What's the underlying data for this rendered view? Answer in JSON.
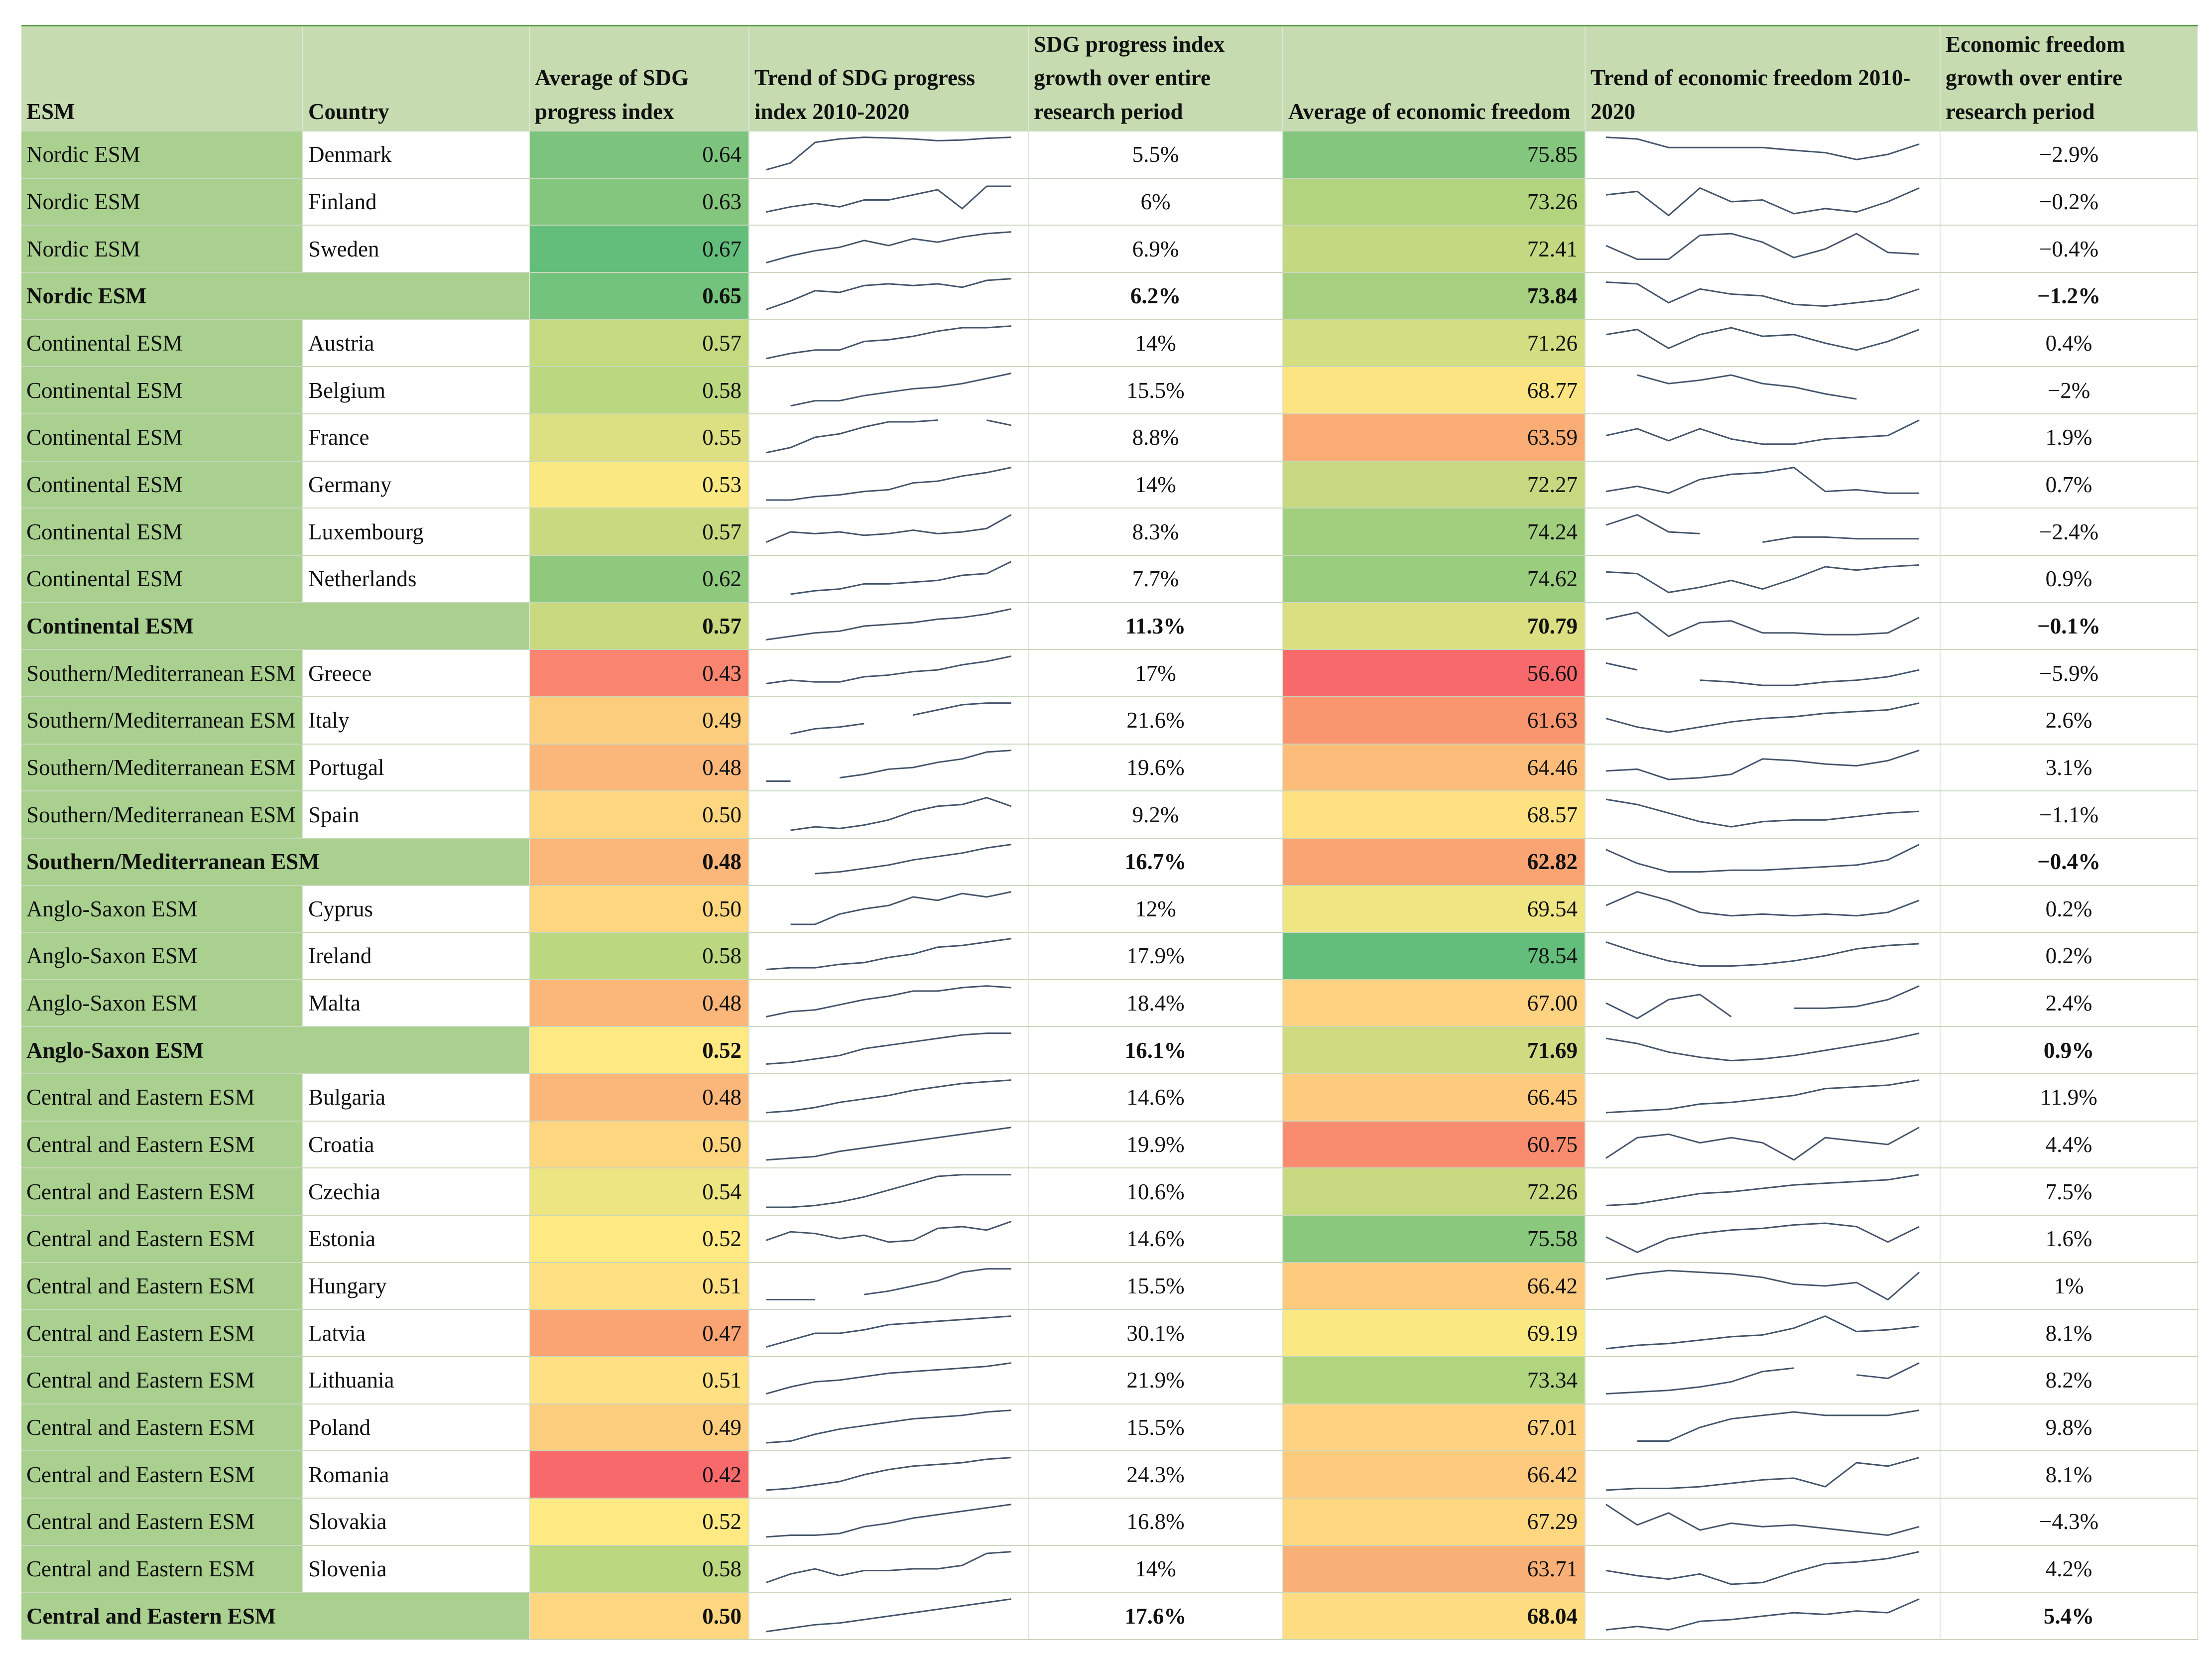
{
  "headers": {
    "esm": "ESM",
    "country": "Country",
    "avg_sdg": "Average of SDG progress index",
    "trend_sdg": "Trend of SDG progress index 2010-2020",
    "growth_sdg": "SDG progress index growth over entire research period",
    "avg_ef": "Average of economic freedom",
    "trend_ef": "Trend of economic freedom 2010-2020",
    "growth_ef": "Economic freedom growth over entire research period"
  },
  "colors": {
    "header_bg": "#c6dcb0",
    "esm_bg": "#a9d08e",
    "scale_low": "#f8696b",
    "scale_mid": "#ffeb84",
    "scale_high": "#63be7b",
    "sparkline": "#44546a"
  },
  "rows": [
    {
      "esm": "Nordic ESM",
      "country": "Denmark",
      "avg_sdg": "0.64",
      "growth_sdg": "5.5%",
      "avg_ef": "75.85",
      "growth_ef": "−2.9%",
      "sdg_color": "#7cc47e",
      "ef_color": "#84c67d",
      "trend_sdg": [
        0.05,
        0.25,
        0.85,
        0.95,
        1,
        0.98,
        0.95,
        0.9,
        0.92,
        0.97,
        1
      ],
      "trend_ef": [
        1,
        0.95,
        0.7,
        0.7,
        0.7,
        0.7,
        0.62,
        0.55,
        0.35,
        0.5,
        0.8
      ]
    },
    {
      "esm": "Nordic ESM",
      "country": "Finland",
      "avg_sdg": "0.63",
      "growth_sdg": "6%",
      "avg_ef": "73.26",
      "growth_ef": "−0.2%",
      "sdg_color": "#84c67d",
      "ef_color": "#b3d47f",
      "trend_sdg": [
        0.2,
        0.35,
        0.45,
        0.35,
        0.55,
        0.55,
        0.7,
        0.85,
        0.3,
        0.95,
        0.95
      ],
      "trend_ef": [
        0.7,
        0.8,
        0.1,
        0.9,
        0.5,
        0.55,
        0.15,
        0.3,
        0.2,
        0.5,
        0.9
      ]
    },
    {
      "esm": "Nordic ESM",
      "country": "Sweden",
      "avg_sdg": "0.67",
      "growth_sdg": "6.9%",
      "avg_ef": "72.41",
      "growth_ef": "−0.4%",
      "sdg_color": "#63be7b",
      "ef_color": "#c3d880",
      "trend_sdg": [
        0.1,
        0.3,
        0.45,
        0.55,
        0.75,
        0.6,
        0.8,
        0.7,
        0.85,
        0.95,
        1
      ],
      "trend_ef": [
        0.6,
        0.2,
        0.2,
        0.9,
        0.95,
        0.7,
        0.25,
        0.5,
        0.95,
        0.4,
        0.35
      ]
    },
    {
      "esm": "Nordic ESM",
      "country": "",
      "subtotal": true,
      "avg_sdg": "0.65",
      "growth_sdg": "6.2%",
      "avg_ef": "73.84",
      "growth_ef": "−1.2%",
      "sdg_color": "#74c37c",
      "ef_color": "#a6d07f",
      "trend_sdg": [
        0.1,
        0.35,
        0.65,
        0.6,
        0.8,
        0.85,
        0.8,
        0.85,
        0.75,
        0.95,
        1
      ],
      "trend_ef": [
        0.9,
        0.85,
        0.3,
        0.7,
        0.55,
        0.5,
        0.25,
        0.2,
        0.3,
        0.4,
        0.7
      ]
    },
    {
      "esm": "Continental ESM",
      "country": "Austria",
      "avg_sdg": "0.57",
      "growth_sdg": "14%",
      "avg_ef": "71.26",
      "growth_ef": "0.4%",
      "sdg_color": "#c5d980",
      "ef_color": "#d3dd81",
      "trend_sdg": [
        0.05,
        0.2,
        0.3,
        0.3,
        0.55,
        0.6,
        0.7,
        0.85,
        0.95,
        0.95,
        1
      ],
      "trend_ef": [
        0.75,
        0.9,
        0.35,
        0.75,
        0.95,
        0.7,
        0.75,
        0.5,
        0.3,
        0.55,
        0.9
      ]
    },
    {
      "esm": "Continental ESM",
      "country": "Belgium",
      "avg_sdg": "0.58",
      "growth_sdg": "15.5%",
      "avg_ef": "68.77",
      "growth_ef": "−2%",
      "sdg_color": "#bbd780",
      "ef_color": "#fde483",
      "trend_sdg": [
        null,
        0.05,
        0.2,
        0.2,
        0.35,
        0.45,
        0.55,
        0.6,
        0.7,
        0.85,
        1
      ],
      "trend_ef": [
        null,
        0.95,
        0.7,
        0.8,
        0.95,
        0.7,
        0.6,
        0.4,
        0.25,
        null,
        0.5
      ]
    },
    {
      "esm": "Continental ESM",
      "country": "France",
      "avg_sdg": "0.55",
      "growth_sdg": "8.8%",
      "avg_ef": "63.59",
      "growth_ef": "1.9%",
      "sdg_color": "#dde082",
      "ef_color": "#f9ad75",
      "trend_sdg": [
        0.05,
        0.2,
        0.5,
        0.6,
        0.8,
        0.95,
        0.95,
        1,
        null,
        1,
        0.85
      ],
      "trend_ef": [
        0.55,
        0.75,
        0.4,
        0.75,
        0.45,
        0.3,
        0.3,
        0.45,
        0.5,
        0.55,
        1
      ]
    },
    {
      "esm": "Continental ESM",
      "country": "Germany",
      "avg_sdg": "0.53",
      "growth_sdg": "14%",
      "avg_ef": "72.27",
      "growth_ef": "0.7%",
      "sdg_color": "#fae983",
      "ef_color": "#c6d980",
      "trend_sdg": [
        0.05,
        0.05,
        0.15,
        0.2,
        0.3,
        0.35,
        0.55,
        0.6,
        0.75,
        0.85,
        1
      ],
      "trend_ef": [
        0.3,
        0.45,
        0.25,
        0.65,
        0.8,
        0.85,
        1,
        0.3,
        0.35,
        0.25,
        0.25
      ]
    },
    {
      "esm": "Continental ESM",
      "country": "Luxembourg",
      "avg_sdg": "0.57",
      "growth_sdg": "8.3%",
      "avg_ef": "74.24",
      "growth_ef": "−2.4%",
      "sdg_color": "#c8d980",
      "ef_color": "#a1cf7e",
      "trend_sdg": [
        0.2,
        0.5,
        0.45,
        0.5,
        0.4,
        0.45,
        0.55,
        0.45,
        0.5,
        0.6,
        1
      ],
      "trend_ef": [
        0.7,
        1,
        0.5,
        0.45,
        null,
        0.2,
        0.35,
        0.35,
        0.3,
        0.3,
        0.3
      ]
    },
    {
      "esm": "Continental ESM",
      "country": "Netherlands",
      "avg_sdg": "0.62",
      "growth_sdg": "7.7%",
      "avg_ef": "74.62",
      "growth_ef": "0.9%",
      "sdg_color": "#8fc97e",
      "ef_color": "#9bcd7e",
      "trend_sdg": [
        null,
        0.05,
        0.15,
        0.2,
        0.35,
        0.35,
        0.4,
        0.45,
        0.6,
        0.65,
        1
      ],
      "trend_ef": [
        0.7,
        0.65,
        0.1,
        0.25,
        0.45,
        0.2,
        0.5,
        0.85,
        0.75,
        0.85,
        0.9
      ]
    },
    {
      "esm": "Continental ESM",
      "country": "",
      "subtotal": true,
      "avg_sdg": "0.57",
      "growth_sdg": "11.3%",
      "avg_ef": "70.79",
      "growth_ef": "−0.1%",
      "sdg_color": "#c8d980",
      "ef_color": "#dbdf81",
      "trend_sdg": [
        0.1,
        0.2,
        0.3,
        0.35,
        0.5,
        0.55,
        0.6,
        0.7,
        0.75,
        0.85,
        1
      ],
      "trend_ef": [
        0.7,
        0.9,
        0.2,
        0.6,
        0.65,
        0.3,
        0.3,
        0.25,
        0.25,
        0.3,
        0.75
      ]
    },
    {
      "esm": "Southern/Mediterranean ESM",
      "country": "Greece",
      "avg_sdg": "0.43",
      "growth_sdg": "17%",
      "avg_ef": "56.60",
      "growth_ef": "−5.9%",
      "sdg_color": "#f98570",
      "ef_color": "#f8696b",
      "trend_sdg": [
        0.2,
        0.3,
        0.25,
        0.25,
        0.4,
        0.45,
        0.55,
        0.6,
        0.75,
        0.85,
        1
      ],
      "trend_ef": [
        0.8,
        0.6,
        null,
        0.3,
        0.25,
        0.15,
        0.15,
        0.25,
        0.3,
        0.4,
        0.6
      ]
    },
    {
      "esm": "Southern/Mediterranean ESM",
      "country": "Italy",
      "avg_sdg": "0.49",
      "growth_sdg": "21.6%",
      "avg_ef": "61.63",
      "growth_ef": "2.6%",
      "sdg_color": "#fdcd7e",
      "ef_color": "#f9966f",
      "trend_sdg": [
        null,
        0.1,
        0.25,
        0.3,
        0.4,
        null,
        0.65,
        0.8,
        0.95,
        1,
        1
      ],
      "trend_ef": [
        0.55,
        0.3,
        0.15,
        0.3,
        0.45,
        0.55,
        0.6,
        0.7,
        0.75,
        0.8,
        1
      ]
    },
    {
      "esm": "Southern/Mediterranean ESM",
      "country": "Portugal",
      "avg_sdg": "0.48",
      "growth_sdg": "19.6%",
      "avg_ef": "64.46",
      "growth_ef": "3.1%",
      "sdg_color": "#fbb67a",
      "ef_color": "#fbbd79",
      "trend_sdg": [
        0.1,
        0.1,
        null,
        0.2,
        0.3,
        0.45,
        0.5,
        0.65,
        0.75,
        0.95,
        1
      ],
      "trend_ef": [
        0.4,
        0.45,
        0.15,
        0.2,
        0.3,
        0.75,
        0.7,
        0.6,
        0.55,
        0.7,
        1
      ]
    },
    {
      "esm": "Southern/Mediterranean ESM",
      "country": "Spain",
      "avg_sdg": "0.50",
      "growth_sdg": "9.2%",
      "avg_ef": "68.57",
      "growth_ef": "−1.1%",
      "sdg_color": "#fed680",
      "ef_color": "#fee282",
      "trend_sdg": [
        null,
        0.05,
        0.15,
        0.1,
        0.2,
        0.35,
        0.6,
        0.75,
        0.8,
        1,
        0.75
      ],
      "trend_ef": [
        0.95,
        0.8,
        0.55,
        0.3,
        0.15,
        0.3,
        0.35,
        0.35,
        0.45,
        0.55,
        0.6
      ]
    },
    {
      "esm": "Southern/Mediterranean ESM",
      "country": "",
      "subtotal": true,
      "avg_sdg": "0.48",
      "growth_sdg": "16.7%",
      "avg_ef": "62.82",
      "growth_ef": "−0.4%",
      "sdg_color": "#fbb67a",
      "ef_color": "#faa474",
      "trend_sdg": [
        0.1,
        null,
        0.15,
        0.2,
        0.3,
        0.4,
        0.55,
        0.65,
        0.75,
        0.9,
        1
      ],
      "trend_ef": [
        0.85,
        0.45,
        0.2,
        0.2,
        0.25,
        0.25,
        0.3,
        0.35,
        0.4,
        0.55,
        1
      ]
    },
    {
      "esm": "Anglo-Saxon ESM",
      "country": "Cyprus",
      "avg_sdg": "0.50",
      "growth_sdg": "12%",
      "avg_ef": "69.54",
      "growth_ef": "0.2%",
      "sdg_color": "#fed680",
      "ef_color": "#f0e583",
      "trend_sdg": [
        null,
        0.05,
        0.05,
        0.35,
        0.5,
        0.6,
        0.85,
        0.75,
        0.95,
        0.85,
        1
      ],
      "trend_ef": [
        0.6,
        1,
        0.75,
        0.4,
        0.3,
        0.35,
        0.3,
        0.35,
        0.3,
        0.4,
        0.75
      ]
    },
    {
      "esm": "Anglo-Saxon ESM",
      "country": "Ireland",
      "avg_sdg": "0.58",
      "growth_sdg": "17.9%",
      "avg_ef": "78.54",
      "growth_ef": "0.2%",
      "sdg_color": "#bbd780",
      "ef_color": "#63be7b",
      "trend_sdg": [
        0.1,
        0.15,
        0.15,
        0.25,
        0.3,
        0.45,
        0.55,
        0.75,
        0.8,
        0.9,
        1
      ],
      "trend_ef": [
        0.9,
        0.6,
        0.35,
        0.2,
        0.2,
        0.25,
        0.35,
        0.5,
        0.7,
        0.8,
        0.85
      ]
    },
    {
      "esm": "Anglo-Saxon ESM",
      "country": "Malta",
      "avg_sdg": "0.48",
      "growth_sdg": "18.4%",
      "avg_ef": "67.00",
      "growth_ef": "2.4%",
      "sdg_color": "#fbb67a",
      "ef_color": "#fed280",
      "trend_sdg": [
        0.1,
        0.25,
        0.3,
        0.45,
        0.6,
        0.7,
        0.85,
        0.85,
        0.95,
        1,
        0.95
      ],
      "trend_ef": [
        0.5,
        0.05,
        0.6,
        0.75,
        0.1,
        null,
        0.35,
        0.35,
        0.4,
        0.6,
        1
      ]
    },
    {
      "esm": "Anglo-Saxon ESM",
      "country": "",
      "subtotal": true,
      "avg_sdg": "0.52",
      "growth_sdg": "16.1%",
      "avg_ef": "71.69",
      "growth_ef": "0.9%",
      "sdg_color": "#fee983",
      "ef_color": "#cedb80",
      "trend_sdg": [
        0.1,
        0.15,
        0.25,
        0.35,
        0.55,
        0.65,
        0.75,
        0.85,
        0.95,
        1,
        1
      ],
      "trend_ef": [
        0.85,
        0.7,
        0.45,
        0.3,
        0.2,
        0.25,
        0.35,
        0.5,
        0.65,
        0.8,
        1
      ]
    },
    {
      "esm": "Central and Eastern ESM",
      "country": "Bulgaria",
      "avg_sdg": "0.48",
      "growth_sdg": "14.6%",
      "avg_ef": "66.45",
      "growth_ef": "11.9%",
      "sdg_color": "#fbb67a",
      "ef_color": "#fecb7e",
      "trend_sdg": [
        0.05,
        0.1,
        0.2,
        0.35,
        0.45,
        0.55,
        0.7,
        0.8,
        0.9,
        0.95,
        1
      ],
      "trend_ef": [
        0.05,
        0.1,
        0.15,
        0.3,
        0.35,
        0.45,
        0.55,
        0.75,
        0.8,
        0.85,
        1
      ]
    },
    {
      "esm": "Central and Eastern ESM",
      "country": "Croatia",
      "avg_sdg": "0.50",
      "growth_sdg": "19.9%",
      "avg_ef": "60.75",
      "growth_ef": "4.4%",
      "sdg_color": "#fed680",
      "ef_color": "#f98c6e",
      "trend_sdg": [
        0.05,
        0.1,
        0.15,
        0.3,
        0.4,
        0.5,
        0.6,
        0.7,
        0.8,
        0.9,
        1
      ],
      "trend_ef": [
        0.1,
        0.7,
        0.8,
        0.55,
        0.7,
        0.55,
        0.05,
        0.7,
        0.6,
        0.5,
        1
      ]
    },
    {
      "esm": "Central and Eastern ESM",
      "country": "Czechia",
      "avg_sdg": "0.54",
      "growth_sdg": "10.6%",
      "avg_ef": "72.26",
      "growth_ef": "7.5%",
      "sdg_color": "#ece582",
      "ef_color": "#c6d980",
      "trend_sdg": [
        0.05,
        0.05,
        0.1,
        0.2,
        0.35,
        0.55,
        0.75,
        0.95,
        1,
        1,
        1
      ],
      "trend_ef": [
        0.1,
        0.15,
        0.3,
        0.45,
        0.5,
        0.6,
        0.7,
        0.75,
        0.8,
        0.85,
        1
      ]
    },
    {
      "esm": "Central and Eastern ESM",
      "country": "Estonia",
      "avg_sdg": "0.52",
      "growth_sdg": "14.6%",
      "avg_ef": "75.58",
      "growth_ef": "1.6%",
      "sdg_color": "#fee983",
      "ef_color": "#8ac87d",
      "trend_sdg": [
        0.45,
        0.7,
        0.65,
        0.5,
        0.6,
        0.4,
        0.45,
        0.8,
        0.85,
        0.75,
        1
      ],
      "trend_ef": [
        0.55,
        0.1,
        0.5,
        0.65,
        0.75,
        0.8,
        0.9,
        0.95,
        0.85,
        0.4,
        0.85
      ]
    },
    {
      "esm": "Central and Eastern ESM",
      "country": "Hungary",
      "avg_sdg": "0.51",
      "growth_sdg": "15.5%",
      "avg_ef": "66.42",
      "growth_ef": "1%",
      "sdg_color": "#ffe082",
      "ef_color": "#fecb7e",
      "trend_sdg": [
        0.1,
        0.1,
        0.1,
        null,
        0.25,
        0.35,
        0.5,
        0.65,
        0.9,
        1,
        1
      ],
      "trend_ef": [
        0.7,
        0.85,
        0.95,
        0.9,
        0.85,
        0.75,
        0.55,
        0.5,
        0.6,
        0.1,
        0.9
      ]
    },
    {
      "esm": "Central and Eastern ESM",
      "country": "Latvia",
      "avg_sdg": "0.47",
      "growth_sdg": "30.1%",
      "avg_ef": "69.19",
      "growth_ef": "8.1%",
      "sdg_color": "#faa474",
      "ef_color": "#fae983",
      "trend_sdg": [
        0.1,
        0.3,
        0.5,
        0.5,
        0.6,
        0.75,
        0.8,
        0.85,
        0.9,
        0.95,
        1
      ],
      "trend_ef": [
        0.05,
        0.15,
        0.2,
        0.3,
        0.4,
        0.45,
        0.65,
        1,
        0.55,
        0.6,
        0.7
      ]
    },
    {
      "esm": "Central and Eastern ESM",
      "country": "Lithuania",
      "avg_sdg": "0.51",
      "growth_sdg": "21.9%",
      "avg_ef": "73.34",
      "growth_ef": "8.2%",
      "sdg_color": "#ffe082",
      "ef_color": "#b1d47f",
      "trend_sdg": [
        0.1,
        0.3,
        0.45,
        0.5,
        0.6,
        0.7,
        0.75,
        0.8,
        0.85,
        0.9,
        1
      ],
      "trend_ef": [
        0.1,
        0.15,
        0.2,
        0.3,
        0.45,
        0.75,
        0.85,
        null,
        0.65,
        0.55,
        1
      ]
    },
    {
      "esm": "Central and Eastern ESM",
      "country": "Poland",
      "avg_sdg": "0.49",
      "growth_sdg": "15.5%",
      "avg_ef": "67.01",
      "growth_ef": "9.8%",
      "sdg_color": "#fdcd7e",
      "ef_color": "#fed280",
      "trend_sdg": [
        0.05,
        0.1,
        0.3,
        0.45,
        0.55,
        0.65,
        0.75,
        0.8,
        0.85,
        0.95,
        1
      ],
      "trend_ef": [
        null,
        0.1,
        0.1,
        0.5,
        0.75,
        0.85,
        0.95,
        0.85,
        0.85,
        0.85,
        1
      ]
    },
    {
      "esm": "Central and Eastern ESM",
      "country": "Romania",
      "avg_sdg": "0.42",
      "growth_sdg": "24.3%",
      "avg_ef": "66.42",
      "growth_ef": "8.1%",
      "sdg_color": "#f8696b",
      "ef_color": "#fecb7e",
      "trend_sdg": [
        0.05,
        0.1,
        0.2,
        0.3,
        0.5,
        0.65,
        0.75,
        0.8,
        0.85,
        0.95,
        1
      ],
      "trend_ef": [
        0.05,
        0.1,
        0.1,
        0.15,
        0.25,
        0.35,
        0.4,
        0.15,
        0.85,
        0.75,
        1
      ]
    },
    {
      "esm": "Central and Eastern ESM",
      "country": "Slovakia",
      "avg_sdg": "0.52",
      "growth_sdg": "16.8%",
      "avg_ef": "67.29",
      "growth_ef": "−4.3%",
      "sdg_color": "#fee983",
      "ef_color": "#fed780",
      "trend_sdg": [
        0.05,
        0.1,
        0.1,
        0.15,
        0.35,
        0.45,
        0.6,
        0.7,
        0.8,
        0.9,
        1
      ],
      "trend_ef": [
        1,
        0.4,
        0.75,
        0.25,
        0.45,
        0.35,
        0.4,
        0.3,
        0.2,
        0.1,
        0.35
      ]
    },
    {
      "esm": "Central and Eastern ESM",
      "country": "Slovenia",
      "avg_sdg": "0.58",
      "growth_sdg": "14%",
      "avg_ef": "63.71",
      "growth_ef": "4.2%",
      "sdg_color": "#bbd780",
      "ef_color": "#f9b076",
      "trend_sdg": [
        0.1,
        0.35,
        0.5,
        0.3,
        0.45,
        0.45,
        0.5,
        0.5,
        0.6,
        0.95,
        1
      ],
      "trend_ef": [
        0.45,
        0.3,
        0.2,
        0.35,
        0.05,
        0.1,
        0.4,
        0.65,
        0.7,
        0.8,
        1
      ]
    },
    {
      "esm": "Central and Eastern ESM",
      "country": "",
      "subtotal": true,
      "avg_sdg": "0.50",
      "growth_sdg": "17.6%",
      "avg_ef": "68.04",
      "growth_ef": "5.4%",
      "sdg_color": "#fed680",
      "ef_color": "#fedc81",
      "trend_sdg": [
        0.05,
        0.15,
        0.25,
        0.3,
        0.4,
        0.5,
        0.6,
        0.7,
        0.8,
        0.9,
        1
      ],
      "trend_ef": [
        0.1,
        0.2,
        0.1,
        0.35,
        0.4,
        0.5,
        0.6,
        0.55,
        0.65,
        0.6,
        1
      ]
    }
  ]
}
